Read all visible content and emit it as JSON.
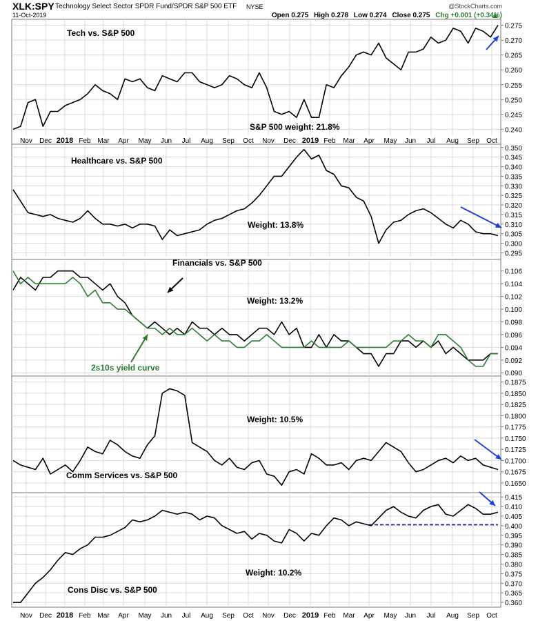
{
  "header": {
    "symbol": "XLK:SPY",
    "name": "Technology Select Sector SPDR Fund/SPDR S&P 500 ETF",
    "exchange": "NYSE",
    "date": "11-Oct-2019",
    "brand": "@StockCharts.com",
    "open": "Open 0.275",
    "high": "High 0.278",
    "low": "Low 0.274",
    "close": "Close 0.275",
    "chg": "Chg +0.001 (+0.34%)"
  },
  "colors": {
    "series": "#000000",
    "overlay": "#2e7d32",
    "arrow_blue": "#1f3fd8",
    "arrow_black": "#000000",
    "support": "#1a1aa0",
    "grid": "#d9d9d9"
  },
  "x_axis": {
    "labels": [
      "Nov",
      "Dec",
      "2018",
      "Feb",
      "Mar",
      "Apr",
      "May",
      "Jun",
      "Jul",
      "Aug",
      "Sep",
      "Oct",
      "Nov",
      "Dec",
      "2019",
      "Feb",
      "Mar",
      "Apr",
      "May",
      "Jun",
      "Jul",
      "Aug",
      "Sep",
      "Oct"
    ],
    "bold": [
      "2018",
      "2019"
    ]
  },
  "chart_data": [
    {
      "type": "line",
      "title": "Tech vs. S&P 500",
      "annotation": "S&P 500 weight: 21.8%",
      "y_ticks": [
        "0.240",
        "0.245",
        "0.250",
        "0.255",
        "0.260",
        "0.265",
        "0.270",
        "0.275"
      ],
      "ylim": [
        0.238,
        0.277
      ],
      "arrow": {
        "color": "blue",
        "direction": "up"
      },
      "series": [
        {
          "values": [
            0.24,
            0.241,
            0.249,
            0.25,
            0.241,
            0.246,
            0.246,
            0.248,
            0.249,
            0.25,
            0.252,
            0.255,
            0.253,
            0.252,
            0.25,
            0.257,
            0.256,
            0.257,
            0.254,
            0.253,
            0.258,
            0.257,
            0.256,
            0.259,
            0.259,
            0.256,
            0.255,
            0.254,
            0.255,
            0.258,
            0.257,
            0.255,
            0.254,
            0.259,
            0.254,
            0.246,
            0.245,
            0.246,
            0.244,
            0.25,
            0.244,
            0.244,
            0.255,
            0.254,
            0.258,
            0.261,
            0.265,
            0.266,
            0.265,
            0.269,
            0.264,
            0.262,
            0.26,
            0.266,
            0.266,
            0.267,
            0.271,
            0.269,
            0.27,
            0.274,
            0.273,
            0.269,
            0.274,
            0.273,
            0.271,
            0.275
          ]
        }
      ]
    },
    {
      "type": "line",
      "title": "Healthcare vs. S&P 500",
      "annotation": "Weight: 13.8%",
      "y_ticks": [
        "0.295",
        "0.300",
        "0.305",
        "0.310",
        "0.315",
        "0.320",
        "0.325",
        "0.330",
        "0.335",
        "0.340",
        "0.345",
        "0.350"
      ],
      "ylim": [
        0.293,
        0.351
      ],
      "arrow": {
        "color": "blue",
        "direction": "down"
      },
      "series": [
        {
          "values": [
            0.328,
            0.322,
            0.316,
            0.315,
            0.314,
            0.315,
            0.313,
            0.312,
            0.311,
            0.313,
            0.317,
            0.313,
            0.31,
            0.31,
            0.309,
            0.31,
            0.308,
            0.31,
            0.31,
            0.309,
            0.302,
            0.307,
            0.304,
            0.305,
            0.306,
            0.307,
            0.31,
            0.312,
            0.313,
            0.315,
            0.317,
            0.318,
            0.321,
            0.325,
            0.33,
            0.335,
            0.335,
            0.34,
            0.345,
            0.349,
            0.344,
            0.346,
            0.338,
            0.336,
            0.33,
            0.329,
            0.324,
            0.322,
            0.314,
            0.3,
            0.307,
            0.311,
            0.312,
            0.315,
            0.317,
            0.318,
            0.316,
            0.313,
            0.31,
            0.308,
            0.312,
            0.31,
            0.306,
            0.305,
            0.305,
            0.304
          ]
        }
      ]
    },
    {
      "type": "line",
      "title": "Financials vs. S&P 500",
      "annotation": "Weight: 13.2%",
      "overlay_label": "2s10s yield curve",
      "y_ticks": [
        "0.090",
        "0.092",
        "0.094",
        "0.096",
        "0.098",
        "0.100",
        "0.102",
        "0.104",
        "0.106"
      ],
      "ylim": [
        0.0897,
        0.1076
      ],
      "series": [
        {
          "name": "Financials vs. S&P 500",
          "values": [
            0.103,
            0.105,
            0.104,
            0.103,
            0.105,
            0.105,
            0.106,
            0.106,
            0.106,
            0.105,
            0.105,
            0.104,
            0.103,
            0.104,
            0.102,
            0.101,
            0.099,
            0.098,
            0.097,
            0.098,
            0.097,
            0.096,
            0.097,
            0.096,
            0.098,
            0.097,
            0.097,
            0.096,
            0.097,
            0.096,
            0.096,
            0.095,
            0.096,
            0.097,
            0.097,
            0.096,
            0.098,
            0.096,
            0.097,
            0.094,
            0.094,
            0.096,
            0.094,
            0.096,
            0.095,
            0.095,
            0.094,
            0.093,
            0.093,
            0.091,
            0.093,
            0.093,
            0.095,
            0.095,
            0.094,
            0.095,
            0.094,
            0.095,
            0.093,
            0.094,
            0.093,
            0.092,
            0.092,
            0.092,
            0.093,
            0.093
          ]
        },
        {
          "name": "2s10s yield curve",
          "values": [
            0.106,
            0.104,
            0.105,
            0.104,
            0.104,
            0.104,
            0.104,
            0.104,
            0.105,
            0.104,
            0.102,
            0.103,
            0.101,
            0.101,
            0.1,
            0.1,
            0.099,
            0.098,
            0.097,
            0.097,
            0.096,
            0.097,
            0.096,
            0.096,
            0.097,
            0.096,
            0.095,
            0.096,
            0.095,
            0.095,
            0.094,
            0.094,
            0.095,
            0.095,
            0.096,
            0.095,
            0.094,
            0.094,
            0.094,
            0.094,
            0.095,
            0.094,
            0.094,
            0.094,
            0.094,
            0.095,
            0.094,
            0.094,
            0.094,
            0.094,
            0.094,
            0.095,
            0.095,
            0.096,
            0.095,
            0.095,
            0.094,
            0.096,
            0.096,
            0.095,
            0.094,
            0.092,
            0.091,
            0.091,
            0.093,
            0.093
          ]
        }
      ]
    },
    {
      "type": "line",
      "title": "Comm Services vs. S&P 500",
      "annotation": "Weight: 10.5%",
      "y_ticks": [
        "0.1650",
        "0.1675",
        "0.1700",
        "0.1725",
        "0.1750",
        "0.1775",
        "0.1800",
        "0.1825",
        "0.1850",
        "0.1875"
      ],
      "ylim": [
        0.163,
        0.1885
      ],
      "arrow": {
        "color": "blue",
        "direction": "down"
      },
      "series": [
        {
          "values": [
            0.17,
            0.169,
            0.1685,
            0.168,
            0.1705,
            0.167,
            0.168,
            0.169,
            0.1675,
            0.17,
            0.173,
            0.172,
            0.1715,
            0.1745,
            0.1735,
            0.172,
            0.171,
            0.1705,
            0.1735,
            0.1755,
            0.185,
            0.186,
            0.1855,
            0.1845,
            0.174,
            0.173,
            0.172,
            0.17,
            0.169,
            0.1705,
            0.1685,
            0.168,
            0.1695,
            0.17,
            0.167,
            0.1665,
            0.1645,
            0.1675,
            0.168,
            0.167,
            0.1715,
            0.1705,
            0.169,
            0.169,
            0.1695,
            0.168,
            0.17,
            0.1705,
            0.17,
            0.172,
            0.174,
            0.173,
            0.172,
            0.1695,
            0.1675,
            0.168,
            0.169,
            0.17,
            0.1705,
            0.1695,
            0.171,
            0.17,
            0.1705,
            0.169,
            0.1685,
            0.168
          ]
        }
      ]
    },
    {
      "type": "line",
      "title": "Cons Disc vs. S&P 500",
      "annotation": "Weight: 10.2%",
      "y_ticks": [
        "0.360",
        "0.365",
        "0.370",
        "0.375",
        "0.380",
        "0.385",
        "0.390",
        "0.395",
        "0.400",
        "0.405",
        "0.410",
        "0.415"
      ],
      "ylim": [
        0.3575,
        0.4165
      ],
      "arrow": {
        "color": "blue",
        "direction": "down"
      },
      "support_level": 0.4005,
      "series": [
        {
          "values": [
            0.36,
            0.36,
            0.365,
            0.37,
            0.373,
            0.377,
            0.382,
            0.386,
            0.385,
            0.388,
            0.39,
            0.394,
            0.394,
            0.395,
            0.397,
            0.399,
            0.403,
            0.402,
            0.403,
            0.405,
            0.408,
            0.407,
            0.406,
            0.407,
            0.406,
            0.403,
            0.405,
            0.404,
            0.4,
            0.398,
            0.396,
            0.397,
            0.393,
            0.396,
            0.395,
            0.392,
            0.391,
            0.398,
            0.396,
            0.392,
            0.396,
            0.395,
            0.4,
            0.404,
            0.403,
            0.4,
            0.402,
            0.401,
            0.4,
            0.404,
            0.408,
            0.41,
            0.407,
            0.405,
            0.404,
            0.408,
            0.41,
            0.411,
            0.406,
            0.405,
            0.408,
            0.411,
            0.409,
            0.406,
            0.406,
            0.407
          ]
        }
      ]
    }
  ]
}
